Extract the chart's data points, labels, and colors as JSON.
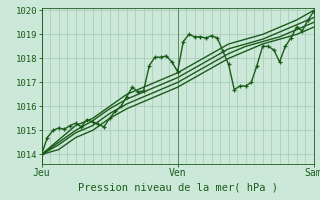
{
  "bg_color": "#cce8d8",
  "grid_color_v": "#a8c8b8",
  "grid_color_h": "#a8c8b8",
  "line_color": "#1a5c1a",
  "xlabel": "Pression niveau de la mer( hPa )",
  "xlabel_color": "#1a5c1a",
  "tick_color": "#1a5c1a",
  "ylim": [
    1013.6,
    1020.1
  ],
  "yticks": [
    1014,
    1015,
    1016,
    1017,
    1018,
    1019,
    1020
  ],
  "day_labels": [
    "Jeu",
    "Ven",
    "Sam"
  ],
  "day_positions": [
    0,
    48,
    96
  ],
  "vgrid_positions": [
    0,
    3,
    6,
    9,
    12,
    15,
    18,
    21,
    24,
    27,
    30,
    33,
    36,
    39,
    42,
    45,
    48,
    51,
    54,
    57,
    60,
    63,
    66,
    69,
    72,
    75,
    78,
    81,
    84,
    87,
    90,
    93,
    96
  ],
  "total_hours": 96,
  "day_vline_color": "#5a8a5a",
  "series": [
    {
      "x": [
        0,
        6,
        12,
        18,
        24,
        30,
        36,
        42,
        48,
        54,
        60,
        66,
        72,
        78,
        84,
        90,
        96
      ],
      "y": [
        1014.0,
        1014.6,
        1015.2,
        1015.5,
        1016.0,
        1016.5,
        1016.8,
        1017.1,
        1017.4,
        1017.8,
        1018.2,
        1018.6,
        1018.8,
        1019.0,
        1019.3,
        1019.6,
        1020.0
      ],
      "has_markers": false,
      "lw": 1.0
    },
    {
      "x": [
        0,
        6,
        12,
        18,
        24,
        30,
        36,
        42,
        48,
        54,
        60,
        66,
        72,
        78,
        84,
        90,
        96
      ],
      "y": [
        1014.0,
        1014.5,
        1015.0,
        1015.4,
        1015.9,
        1016.3,
        1016.6,
        1016.9,
        1017.2,
        1017.6,
        1018.0,
        1018.4,
        1018.6,
        1018.8,
        1019.1,
        1019.4,
        1019.7
      ],
      "has_markers": false,
      "lw": 1.0
    },
    {
      "x": [
        0,
        6,
        12,
        18,
        24,
        30,
        36,
        42,
        48,
        54,
        60,
        66,
        72,
        78,
        84,
        90,
        96
      ],
      "y": [
        1014.0,
        1014.4,
        1014.9,
        1015.2,
        1015.7,
        1016.1,
        1016.4,
        1016.7,
        1017.0,
        1017.4,
        1017.8,
        1018.2,
        1018.5,
        1018.7,
        1018.9,
        1019.2,
        1019.5
      ],
      "has_markers": false,
      "lw": 1.0
    },
    {
      "x": [
        0,
        6,
        12,
        18,
        24,
        30,
        36,
        42,
        48,
        54,
        60,
        66,
        72,
        78,
        84,
        90,
        96
      ],
      "y": [
        1014.0,
        1014.2,
        1014.7,
        1015.0,
        1015.5,
        1015.9,
        1016.2,
        1016.5,
        1016.8,
        1017.2,
        1017.6,
        1018.0,
        1018.3,
        1018.6,
        1018.8,
        1019.0,
        1019.3
      ],
      "has_markers": false,
      "lw": 1.0
    },
    {
      "x": [
        0,
        2,
        4,
        6,
        8,
        10,
        12,
        14,
        16,
        18,
        20,
        22,
        24,
        26,
        28,
        30,
        32,
        34,
        36,
        38,
        40,
        42,
        44,
        46,
        48,
        50,
        52,
        54,
        56,
        58,
        60,
        62,
        64,
        66,
        68,
        70,
        72,
        74,
        76,
        78,
        80,
        82,
        84,
        86,
        88,
        90,
        92,
        94,
        96
      ],
      "y": [
        1014.0,
        1014.7,
        1015.0,
        1015.1,
        1015.05,
        1015.2,
        1015.3,
        1015.15,
        1015.45,
        1015.35,
        1015.25,
        1015.15,
        1015.5,
        1015.8,
        1016.0,
        1016.4,
        1016.8,
        1016.6,
        1016.65,
        1017.7,
        1018.05,
        1018.05,
        1018.1,
        1017.85,
        1017.45,
        1018.7,
        1019.0,
        1018.9,
        1018.9,
        1018.85,
        1018.95,
        1018.85,
        1018.3,
        1017.75,
        1016.7,
        1016.85,
        1016.85,
        1017.0,
        1017.7,
        1018.5,
        1018.5,
        1018.35,
        1017.85,
        1018.5,
        1018.85,
        1019.3,
        1019.15,
        1019.6,
        1019.95
      ],
      "has_markers": true,
      "lw": 1.0
    }
  ]
}
